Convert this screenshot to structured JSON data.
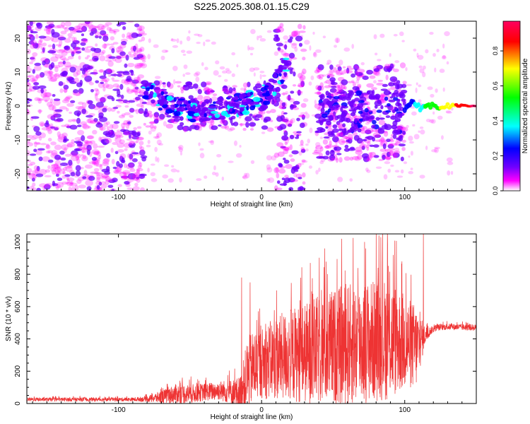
{
  "title": "S225.2025.308.01.15.C29",
  "chart_data": [
    {
      "type": "heatmap",
      "name": "spectrogram",
      "xlabel": "Height of straight line (km)",
      "ylabel": "Frequency (Hz)",
      "xlim": [
        -164,
        150
      ],
      "ylim": [
        -25,
        25
      ],
      "xticks": [
        -100,
        0,
        100
      ],
      "yticks": [
        -20,
        -10,
        0,
        10,
        20
      ],
      "colorbar": {
        "label": "Normalized spectral amplitude",
        "range": [
          0.0,
          0.97
        ],
        "ticks": [
          0.0,
          0.2,
          0.4,
          0.6,
          0.8
        ],
        "tick_labels": [
          "0.0",
          "0.2",
          "0.4",
          "0.6",
          "0.8"
        ],
        "colors": [
          "#ffffff",
          "#ff00ff",
          "#7000ff",
          "#0000ff",
          "#00ffff",
          "#00ff00",
          "#ffff00",
          "#ff0000",
          "#ff0060"
        ]
      },
      "ridge": {
        "x": [
          -82,
          -75,
          -65,
          -55,
          -45,
          -35,
          -25,
          -15,
          -5,
          0,
          5,
          10,
          15,
          20
        ],
        "y": [
          5,
          3,
          0.5,
          -1,
          -1.5,
          -1,
          -0.5,
          0.5,
          1.5,
          2,
          4,
          7,
          10,
          14
        ]
      },
      "tone": {
        "x_start": 100,
        "x_end": 150,
        "frequency": 0,
        "peak_amplitude": 0.95
      }
    },
    {
      "type": "line",
      "name": "snr",
      "xlabel": "Height of straight line (km)",
      "ylabel": "SNR (10 * v/v)",
      "color": "#ee3333",
      "xlim": [
        -164,
        150
      ],
      "ylim": [
        0,
        1050
      ],
      "xticks": [
        -100,
        0,
        100
      ],
      "yticks": [
        0,
        200,
        400,
        600,
        800,
        1000
      ],
      "envelope": {
        "x": [
          -164,
          -90,
          -80,
          -70,
          -60,
          -50,
          -40,
          -30,
          -20,
          -15,
          -12,
          -10,
          -5,
          0,
          10,
          20,
          30,
          40,
          50,
          60,
          70,
          80,
          90,
          100,
          108,
          114,
          118,
          122,
          130,
          150
        ],
        "mean": [
          25,
          25,
          28,
          40,
          60,
          60,
          70,
          80,
          70,
          60,
          120,
          180,
          230,
          250,
          280,
          300,
          310,
          330,
          350,
          360,
          380,
          390,
          400,
          380,
          350,
          420,
          450,
          470,
          475,
          470
        ],
        "spread": [
          12,
          12,
          18,
          40,
          60,
          60,
          55,
          60,
          80,
          110,
          180,
          230,
          230,
          220,
          260,
          290,
          310,
          340,
          360,
          380,
          380,
          380,
          380,
          300,
          260,
          60,
          25,
          20,
          20,
          20
        ]
      },
      "spikes": [
        {
          "x": -14,
          "y": 780
        },
        {
          "x": -8,
          "y": 750
        },
        {
          "x": 34,
          "y": 870
        },
        {
          "x": 44,
          "y": 960
        },
        {
          "x": 56,
          "y": 1020
        },
        {
          "x": 64,
          "y": 1025
        },
        {
          "x": 72,
          "y": 1000
        },
        {
          "x": 82,
          "y": 1040
        },
        {
          "x": 88,
          "y": 990
        },
        {
          "x": 92,
          "y": 920
        },
        {
          "x": 98,
          "y": 880
        },
        {
          "x": 113,
          "y": 1050
        }
      ]
    }
  ]
}
